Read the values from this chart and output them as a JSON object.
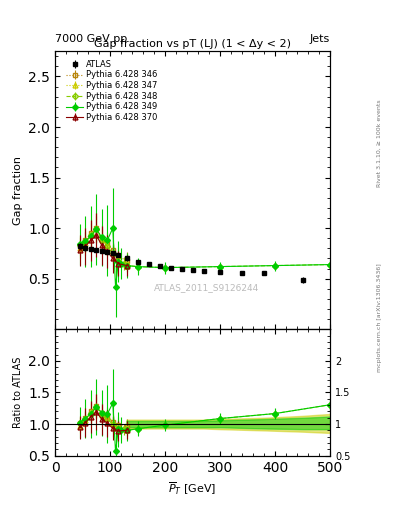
{
  "title_top_left": "7000 GeV pp",
  "title_top_right": "Jets",
  "main_title": "Gap fraction vs pT (LJ) (1 < Δy < 2)",
  "watermark": "ATLAS_2011_S9126244",
  "right_label_top": "Rivet 3.1.10, ≥ 100k events",
  "right_label_bottom": "mcplots.cern.ch [arXiv:1306.3436]",
  "xlabel": "$\\overline{P}_T$ [GeV]",
  "ylabel_main": "Gap fraction",
  "ylabel_ratio": "Ratio to ATLAS",
  "xlim": [
    0,
    500
  ],
  "ylim_main": [
    0,
    2.75
  ],
  "ylim_ratio": [
    0.5,
    2.5
  ],
  "atlas_x": [
    45,
    55,
    65,
    75,
    85,
    95,
    105,
    115,
    130,
    150,
    170,
    190,
    210,
    230,
    250,
    270,
    300,
    340,
    380,
    450
  ],
  "atlas_y": [
    0.82,
    0.8,
    0.79,
    0.78,
    0.77,
    0.76,
    0.75,
    0.73,
    0.7,
    0.67,
    0.65,
    0.63,
    0.61,
    0.6,
    0.59,
    0.58,
    0.57,
    0.56,
    0.56,
    0.49
  ],
  "atlas_yerr": [
    0.03,
    0.03,
    0.02,
    0.02,
    0.02,
    0.02,
    0.02,
    0.02,
    0.02,
    0.02,
    0.02,
    0.02,
    0.02,
    0.02,
    0.02,
    0.02,
    0.02,
    0.02,
    0.02,
    0.03
  ],
  "py346_x": [
    45,
    55,
    65,
    75,
    85,
    95,
    105,
    115,
    130
  ],
  "py346_y": [
    0.83,
    0.88,
    0.95,
    1.0,
    0.9,
    0.85,
    0.78,
    0.72,
    0.68
  ],
  "py346_yerr": [
    0.1,
    0.12,
    0.14,
    0.15,
    0.13,
    0.11,
    0.1,
    0.09,
    0.08
  ],
  "py347_x": [
    45,
    55,
    65,
    75,
    85,
    95,
    105,
    115,
    130
  ],
  "py347_y": [
    0.8,
    0.85,
    0.93,
    1.0,
    0.88,
    0.83,
    0.75,
    0.69,
    0.66
  ],
  "py347_yerr": [
    0.1,
    0.12,
    0.14,
    0.15,
    0.13,
    0.11,
    0.1,
    0.09,
    0.08
  ],
  "py348_x": [
    45,
    55,
    65,
    75,
    85,
    95,
    105,
    115,
    125,
    130,
    150,
    200,
    300,
    400,
    500
  ],
  "py348_y": [
    0.83,
    0.86,
    0.93,
    0.99,
    0.88,
    0.82,
    0.75,
    0.68,
    0.65,
    0.63,
    0.62,
    0.61,
    0.62,
    0.63,
    0.64
  ],
  "py348_yerr": [
    0.08,
    0.1,
    0.12,
    0.13,
    0.11,
    0.09,
    0.08,
    0.07,
    0.06,
    0.06,
    0.05,
    0.04,
    0.04,
    0.04,
    0.04
  ],
  "py349_x": [
    45,
    55,
    65,
    75,
    85,
    95,
    105,
    110,
    115,
    120,
    130,
    150,
    200,
    300,
    400,
    500
  ],
  "py349_y": [
    0.84,
    0.87,
    0.92,
    0.99,
    0.91,
    0.88,
    1.0,
    0.42,
    0.67,
    0.65,
    0.63,
    0.62,
    0.61,
    0.62,
    0.63,
    0.64
  ],
  "py349_yerr": [
    0.2,
    0.25,
    0.3,
    0.35,
    0.28,
    0.35,
    0.4,
    0.3,
    0.2,
    0.15,
    0.12,
    0.08,
    0.06,
    0.05,
    0.05,
    0.05
  ],
  "py370_x": [
    45,
    55,
    65,
    75,
    85,
    95,
    105,
    115,
    130
  ],
  "py370_y": [
    0.78,
    0.82,
    0.88,
    0.93,
    0.83,
    0.77,
    0.7,
    0.65,
    0.63
  ],
  "py370_yerr": [
    0.15,
    0.18,
    0.2,
    0.22,
    0.19,
    0.16,
    0.14,
    0.12,
    0.1
  ],
  "color_346": "#b8860b",
  "color_347": "#cccc00",
  "color_348": "#88cc00",
  "color_349": "#00cc00",
  "color_370": "#8b0000",
  "yticks_main": [
    0.5,
    1.0,
    1.5,
    2.0,
    2.5
  ],
  "yticks_ratio": [
    0.5,
    1.0,
    1.5,
    2.0
  ],
  "band_x": [
    130,
    150,
    170,
    190,
    210,
    230,
    250,
    270,
    300,
    340,
    380,
    450,
    500
  ],
  "band_yellow_lo": [
    0.93,
    0.93,
    0.93,
    0.93,
    0.93,
    0.93,
    0.93,
    0.93,
    0.92,
    0.91,
    0.9,
    0.88,
    0.86
  ],
  "band_yellow_hi": [
    1.07,
    1.07,
    1.07,
    1.07,
    1.07,
    1.07,
    1.07,
    1.07,
    1.08,
    1.09,
    1.1,
    1.13,
    1.16
  ],
  "band_green_lo": [
    0.95,
    0.95,
    0.95,
    0.95,
    0.95,
    0.95,
    0.95,
    0.95,
    0.95,
    0.94,
    0.93,
    0.92,
    0.92
  ],
  "band_green_hi": [
    1.05,
    1.05,
    1.05,
    1.05,
    1.05,
    1.05,
    1.05,
    1.05,
    1.06,
    1.07,
    1.08,
    1.1,
    1.12
  ]
}
